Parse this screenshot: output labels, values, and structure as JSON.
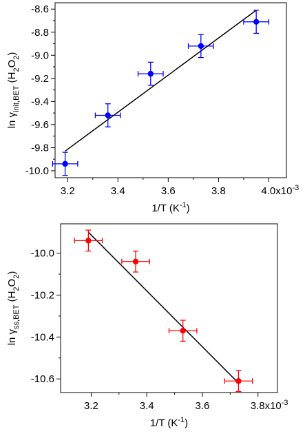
{
  "chart_data": [
    {
      "type": "scatter",
      "title": "",
      "xlabel": "1/T (K⁻¹)",
      "ylabel": "ln γinit,BET (H2O2)",
      "xlim": [
        3.15,
        4.07
      ],
      "ylim": [
        -10.06,
        -8.545
      ],
      "x_ticks": [
        3.2,
        3.4,
        3.6,
        3.8,
        4.0
      ],
      "x_tick_labels": [
        "3.2",
        "3.4",
        "3.6",
        "3.8",
        "4.0x10-3"
      ],
      "y_ticks": [
        -8.6,
        -8.8,
        -9.0,
        -9.2,
        -9.4,
        -9.6,
        -9.8,
        -10.0
      ],
      "y_tick_labels": [
        "-8.6",
        "-8.8",
        "-9.0",
        "-9.2",
        "-9.4",
        "-9.6",
        "-9.8",
        "-10.0"
      ],
      "grid": false,
      "series": [
        {
          "color": "#0000ff",
          "x": [
            3.19,
            3.36,
            3.53,
            3.73,
            3.95
          ],
          "y": [
            -9.94,
            -9.52,
            -9.16,
            -8.92,
            -8.71
          ],
          "x_err": [
            0.05,
            0.05,
            0.05,
            0.05,
            0.05
          ],
          "y_err": [
            0.1,
            0.1,
            0.1,
            0.1,
            0.1
          ]
        }
      ],
      "fit_line": {
        "color": "#000000",
        "x": [
          3.19,
          3.95
        ],
        "y": [
          -9.83,
          -8.61
        ]
      }
    },
    {
      "type": "scatter",
      "title": "",
      "xlabel": "1/T (K⁻¹)",
      "ylabel": "ln γss,BET (H2O2)",
      "xlim": [
        3.09,
        3.87
      ],
      "ylim": [
        -10.665,
        -9.86
      ],
      "x_ticks": [
        3.2,
        3.4,
        3.6,
        3.8
      ],
      "x_tick_labels": [
        "3.2",
        "3.4",
        "3.6",
        "3.8x10-3"
      ],
      "y_ticks": [
        -10.0,
        -10.2,
        -10.4,
        -10.6
      ],
      "y_tick_labels": [
        "-10.0",
        "-10.2",
        "-10.4",
        "-10.6"
      ],
      "grid": false,
      "series": [
        {
          "color": "#ff0000",
          "x": [
            3.19,
            3.36,
            3.53,
            3.73
          ],
          "y": [
            -9.94,
            -10.04,
            -10.37,
            -10.61
          ],
          "x_err": [
            0.05,
            0.05,
            0.05,
            0.05
          ],
          "y_err": [
            0.05,
            0.05,
            0.05,
            0.05
          ]
        }
      ],
      "fit_line": {
        "color": "#000000",
        "x": [
          3.19,
          3.73
        ],
        "y": [
          -9.9,
          -10.62
        ]
      }
    }
  ]
}
